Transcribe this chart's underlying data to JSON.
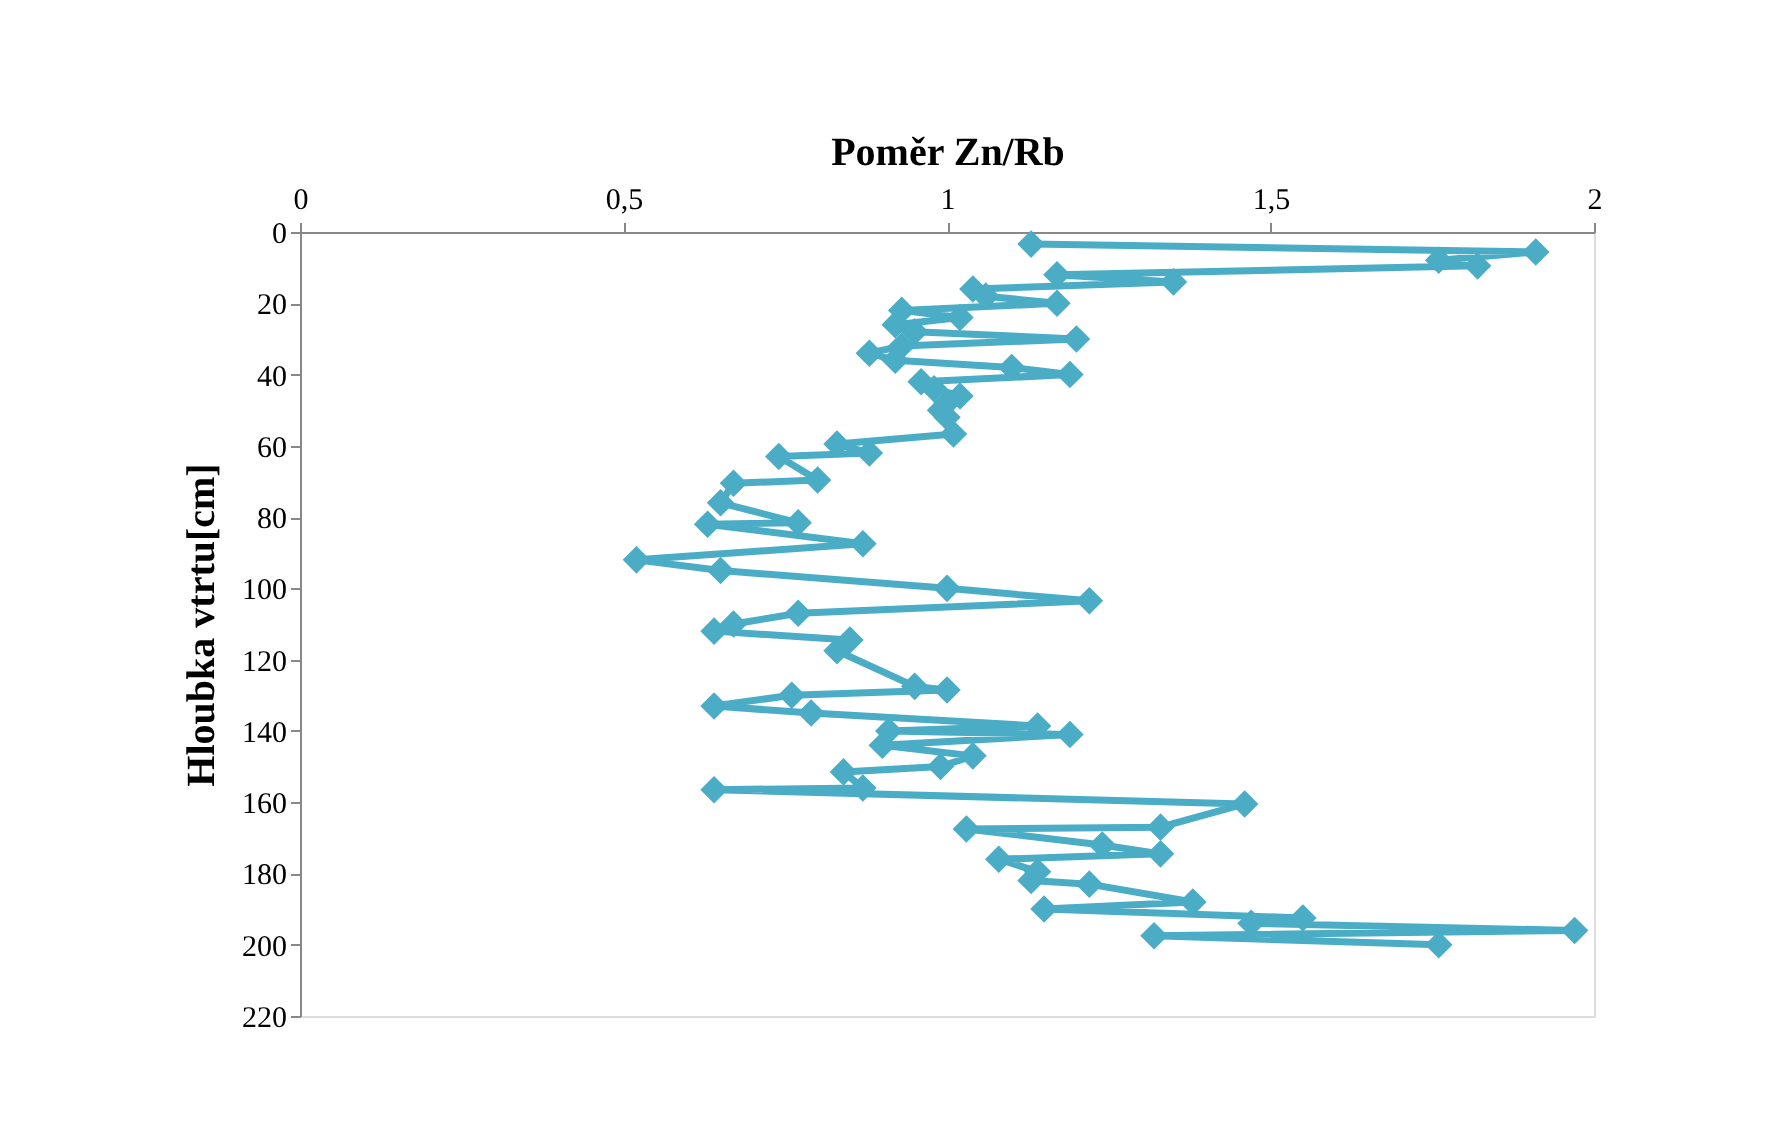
{
  "chart_data": {
    "type": "line",
    "xlabel": "Poměr Zn/Rb",
    "ylabel": "Hloubka vtrtu[cm]",
    "series": [
      {
        "color": "#4bacc6",
        "x": [
          1.13,
          1.91,
          1.76,
          1.82,
          1.17,
          1.35,
          1.04,
          1.06,
          1.17,
          0.93,
          1.02,
          0.92,
          0.95,
          1.2,
          0.93,
          0.88,
          0.92,
          1.1,
          1.19,
          0.96,
          0.98,
          1.02,
          1.0,
          0.99,
          1.0,
          1.01,
          0.83,
          0.88,
          0.74,
          0.8,
          0.67,
          0.65,
          0.77,
          0.63,
          0.87,
          0.52,
          0.65,
          1.0,
          1.22,
          0.77,
          0.67,
          0.64,
          0.85,
          0.83,
          0.95,
          1.0,
          0.76,
          0.64,
          0.79,
          1.14,
          0.91,
          1.19,
          0.9,
          1.04,
          0.99,
          0.84,
          0.87,
          0.64,
          1.46,
          1.33,
          1.03,
          1.24,
          1.33,
          1.08,
          1.14,
          1.13,
          1.22,
          1.38,
          1.15,
          1.55,
          1.47,
          1.97,
          1.32,
          1.76
        ],
        "values": [
          3.4,
          5.6,
          7.9,
          9.5,
          12,
          14,
          16,
          18,
          20,
          22,
          24,
          26,
          28,
          30,
          32,
          34,
          36,
          38,
          40,
          42,
          44,
          46,
          48,
          50,
          52,
          56.7,
          59.5,
          62,
          63,
          69.6,
          70.5,
          76,
          81.6,
          82,
          87.5,
          92,
          95,
          100,
          103.5,
          107,
          110,
          112,
          114.5,
          117.5,
          127.5,
          128.5,
          130,
          133,
          135,
          138.6,
          140,
          141,
          144,
          147,
          150,
          151.5,
          156,
          156.5,
          160.5,
          167,
          167.5,
          172,
          174.5,
          176,
          179.5,
          182,
          183,
          188,
          190,
          192.5,
          194,
          196,
          197.5,
          200
        ]
      }
    ],
    "xlim": [
      0,
      2
    ],
    "xticks": [
      0,
      {
        "value": 0.5,
        "label": "0,5"
      },
      1,
      {
        "value": 1.5,
        "label": "1,5"
      },
      2
    ],
    "ylim": [
      220,
      0
    ],
    "yticks": [
      0,
      20,
      40,
      60,
      80,
      100,
      120,
      140,
      160,
      180,
      200,
      220
    ],
    "marker": "diamond",
    "line_style": "solid",
    "grid": false,
    "legend": false
  }
}
